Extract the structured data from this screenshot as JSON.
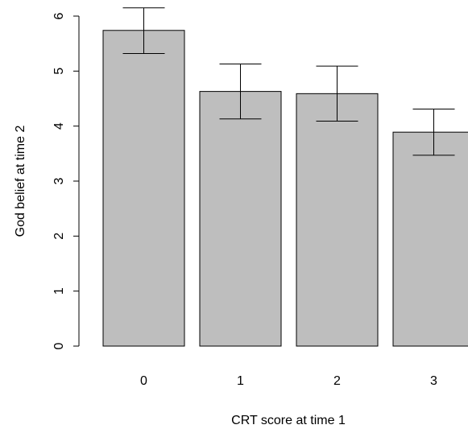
{
  "chart_data": {
    "type": "bar",
    "title": "",
    "xlabel": "CRT score at time 1",
    "ylabel": "God belief at time 2",
    "categories": [
      "0",
      "1",
      "2",
      "3"
    ],
    "values": [
      5.74,
      4.63,
      4.59,
      3.89
    ],
    "error_lower": [
      5.32,
      4.13,
      4.09,
      3.47
    ],
    "error_upper": [
      6.15,
      5.13,
      5.09,
      4.31
    ],
    "yticks": [
      "0",
      "1",
      "2",
      "3",
      "4",
      "5",
      "6"
    ],
    "ylim": [
      0,
      6
    ],
    "grid": false,
    "colors": {
      "bar_fill": "#bebebe",
      "bar_stroke": "#000000"
    }
  }
}
